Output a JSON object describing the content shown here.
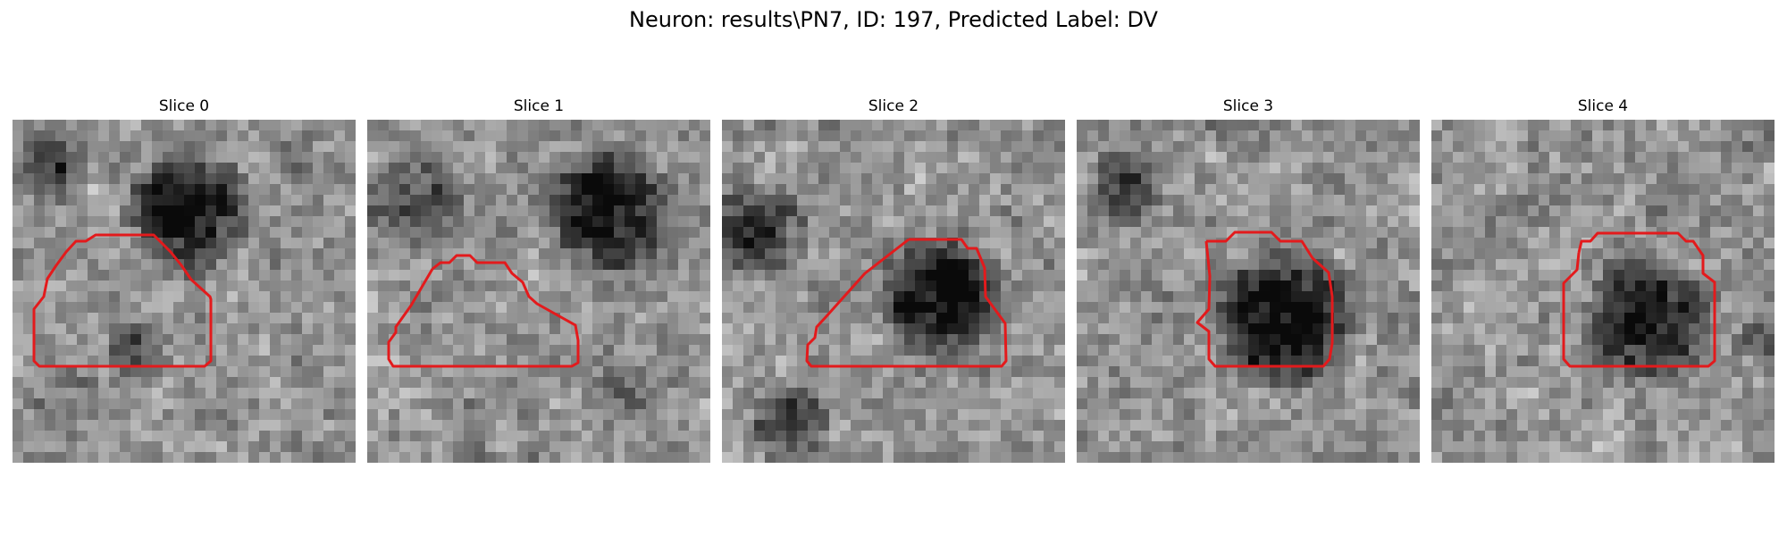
{
  "figure": {
    "title": "Neuron: results\\PN7, ID: 197, Predicted Label: DV"
  },
  "panels": [
    {
      "title": "Slice 0",
      "cell_region": "left-lower",
      "contour": "outline of bright region at lower-left",
      "seed": 11
    },
    {
      "title": "Slice 1",
      "cell_region": "upper-right",
      "contour": "outline of bright region at lower-center",
      "seed": 23
    },
    {
      "title": "Slice 2",
      "cell_region": "center",
      "contour": "outline around dark cell body",
      "seed": 37
    },
    {
      "title": "Slice 3",
      "cell_region": "center-lower",
      "contour": "octagonal outline around dark cell body",
      "seed": 53
    },
    {
      "title": "Slice 4",
      "cell_region": "center-lower",
      "contour": "outline around dark cell body",
      "seed": 71
    }
  ],
  "colors": {
    "contour": "#e31a1c",
    "background": "#ffffff"
  }
}
